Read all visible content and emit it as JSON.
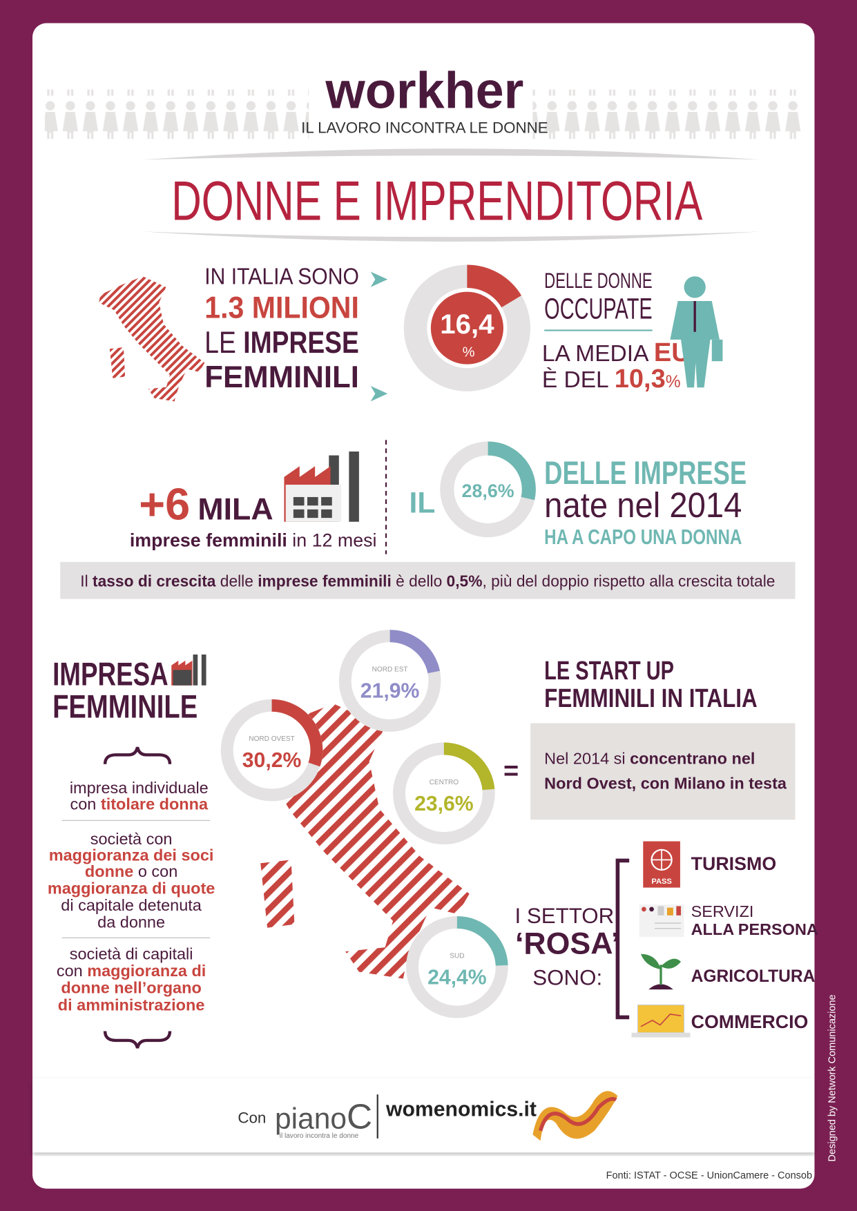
{
  "header": {
    "brand": "workher",
    "tagline": "IL LAVORO INCONTRA LE DONNE",
    "title": "DONNE E IMPRENDITORIA"
  },
  "italy_stat": {
    "lines": [
      "IN ITALIA SONO",
      "1.3 MILIONI",
      "LE ",
      "IMPRESE",
      "FEMMINILI"
    ]
  },
  "share": {
    "value": 16.4,
    "label": "16,4",
    "unit": "%",
    "color": "#c8453f",
    "lines": [
      "DELLE DONNE",
      "OCCUPATE"
    ],
    "eu": [
      "LA MEDIA ",
      "EU",
      "È DEL ",
      "10,3",
      "%"
    ]
  },
  "growth": {
    "big": "+6",
    "unit": "MILA",
    "sub": [
      "imprese femminili",
      " in 12 mesi"
    ]
  },
  "startups": {
    "prefix": "IL",
    "value": 28.6,
    "label": "28,6%",
    "color": "#6fb7b2",
    "lines": [
      "DELLE IMPRESE",
      "nate nel 2014",
      "HA A CAPO UNA DONNA"
    ]
  },
  "note": [
    "Il ",
    "tasso di crescita",
    " delle ",
    "imprese femminili",
    " è dello ",
    "0,5%",
    ", più del doppio rispetto alla crescita totale"
  ],
  "definition": {
    "title": [
      "IMPRESA",
      "FEMMINILE"
    ],
    "items": [
      [
        "impresa individuale",
        "con ",
        "titolare donna"
      ],
      [
        "società con",
        "maggioranza dei soci",
        "donne",
        " o con",
        "maggioranza di quote",
        "di capitale detenuta",
        "da donne"
      ],
      [
        "società di capitali",
        "con ",
        "maggioranza di",
        "donne nell’organo",
        "di amministrazione"
      ]
    ]
  },
  "regions": [
    {
      "name": "NORD EST",
      "value": 21.9,
      "label": "21,9%",
      "color": "#8f8cc8"
    },
    {
      "name": "NORD OVEST",
      "value": 30.2,
      "label": "30,2%",
      "color": "#c8453f"
    },
    {
      "name": "CENTRO",
      "value": 23.6,
      "label": "23,6%",
      "color": "#b3b52a"
    },
    {
      "name": "SUD",
      "value": 24.4,
      "label": "24,4%",
      "color": "#6fb7b2"
    }
  ],
  "startup_box": {
    "title": [
      "LE START UP",
      "FEMMINILI IN ITALIA"
    ],
    "text": [
      "Nel 2014 si ",
      "concentrano nel",
      "Nord Ovest, con Milano in testa"
    ]
  },
  "sectors": {
    "intro": [
      "I SETTORI",
      "‘ROSA’",
      "SONO:"
    ],
    "pass": "PASS",
    "items": [
      "TURISMO",
      "SERVIZI",
      "ALLA PERSONA",
      "AGRICOLTURA",
      "COMMERCIO"
    ]
  },
  "footer": {
    "con": "Con",
    "piano": "piano",
    "c": "C",
    "piano_sub": "il lavoro incontra le donne",
    "womenomics": "womenomics.it",
    "sources": "Fonti: ISTAT - OCSE - UnionCamere - Consob",
    "credit": "Designed by Network Comunicazione"
  }
}
